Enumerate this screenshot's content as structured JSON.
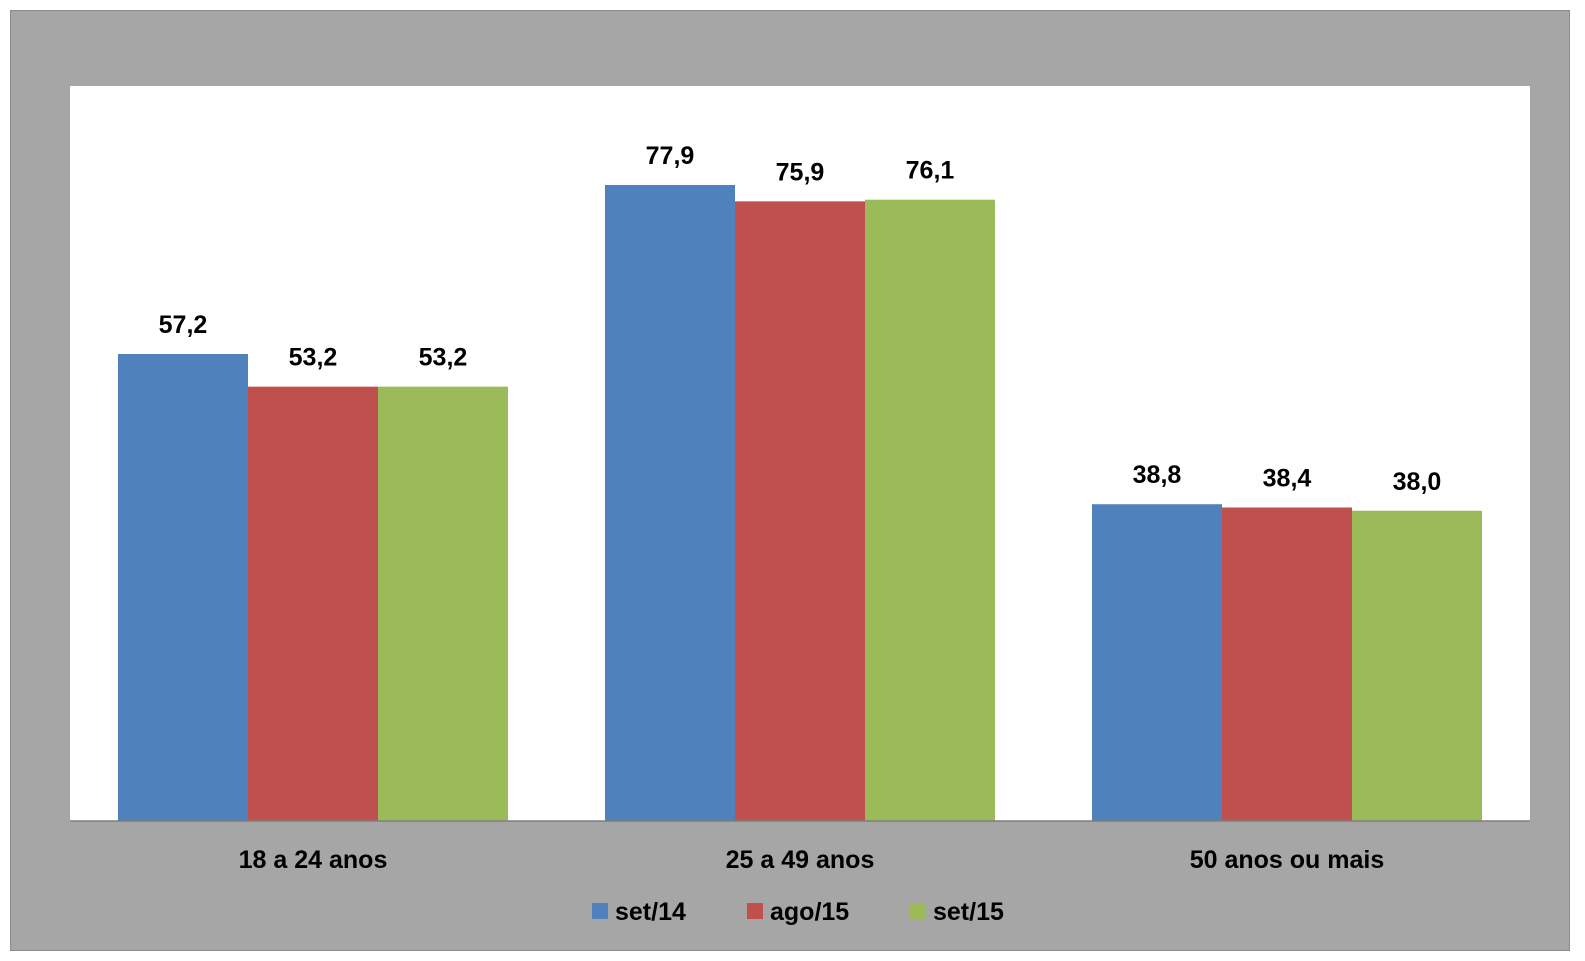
{
  "chart_data": {
    "type": "bar",
    "categories": [
      "18 a 24 anos",
      "25 a 49 anos",
      "50 anos ou mais"
    ],
    "series": [
      {
        "name": "set/14",
        "color": "#4f81bd",
        "values": [
          57.2,
          77.9,
          38.8
        ],
        "labels": [
          "57,2",
          "77,9",
          "38,8"
        ]
      },
      {
        "name": "ago/15",
        "color": "#c0504d",
        "values": [
          53.2,
          75.9,
          38.4
        ],
        "labels": [
          "53,2",
          "75,9",
          "38,4"
        ]
      },
      {
        "name": "set/15",
        "color": "#9bbb59",
        "values": [
          53.2,
          76.1,
          38.0
        ],
        "labels": [
          "53,2",
          "76,1",
          "38,0"
        ]
      }
    ],
    "ylim": [
      0,
      90
    ],
    "grid": false,
    "legend_position": "bottom",
    "data_labels": true
  },
  "colors": {
    "frame_background": "#a6a6a6",
    "plot_background": "#ffffff",
    "axis_line": "#7f7f7f"
  }
}
